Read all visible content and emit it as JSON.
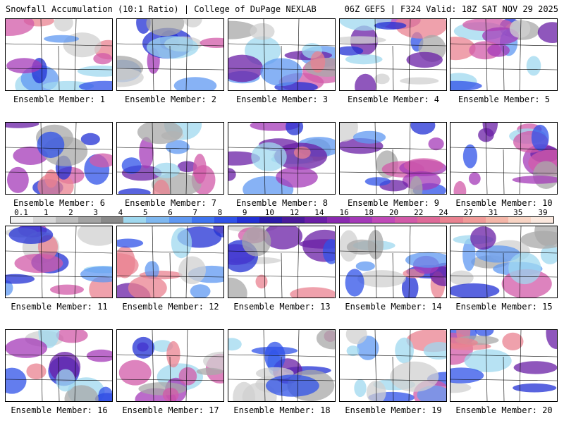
{
  "header": {
    "title_left": "Snowfall Accumulation (10:1 Ratio) | College of DuPage NEXLAB",
    "title_right": "06Z GEFS | F324 Valid: 18Z SAT NOV 29 2025"
  },
  "panels": [
    {
      "label": "Ensemble Member: 1"
    },
    {
      "label": "Ensemble Member: 2"
    },
    {
      "label": "Ensemble Member: 3"
    },
    {
      "label": "Ensemble Member: 4"
    },
    {
      "label": "Ensemble Member: 5"
    },
    {
      "label": "Ensemble Member: 6"
    },
    {
      "label": "Ensemble Member: 7"
    },
    {
      "label": "Ensemble Member: 8"
    },
    {
      "label": "Ensemble Member: 9"
    },
    {
      "label": "Ensemble Member: 10"
    },
    {
      "label": "Ensemble Member: 11"
    },
    {
      "label": "Ensemble Member: 12"
    },
    {
      "label": "Ensemble Member: 13"
    },
    {
      "label": "Ensemble Member: 14"
    },
    {
      "label": "Ensemble Member: 15"
    },
    {
      "label": "Ensemble Member: 16"
    },
    {
      "label": "Ensemble Member: 17"
    },
    {
      "label": "Ensemble Member: 18"
    },
    {
      "label": "Ensemble Member: 19"
    },
    {
      "label": "Ensemble Member: 20"
    }
  ],
  "colorbar": {
    "labels": [
      "0.1",
      "1",
      "2",
      "3",
      "4",
      "5",
      "6",
      "7",
      "8",
      "9",
      "10",
      "12",
      "14",
      "16",
      "18",
      "20",
      "22",
      "24",
      "27",
      "31",
      "35",
      "39"
    ],
    "colors": [
      "#f0f0f0",
      "#d8d8d8",
      "#bdbdbd",
      "#a3a3a3",
      "#8a8a8a",
      "#9fd8ef",
      "#7fb8f0",
      "#5f98f2",
      "#3f74f0",
      "#2f52e8",
      "#2230d4",
      "#2a1aa8",
      "#4a1a9a",
      "#6a1fa6",
      "#8a2ab0",
      "#a43ab8",
      "#c04ab8",
      "#d25aa8",
      "#de6a98",
      "#e98290",
      "#f09a98",
      "#f4b6a8",
      "#f8d4c4",
      "#fbe8de"
    ]
  }
}
